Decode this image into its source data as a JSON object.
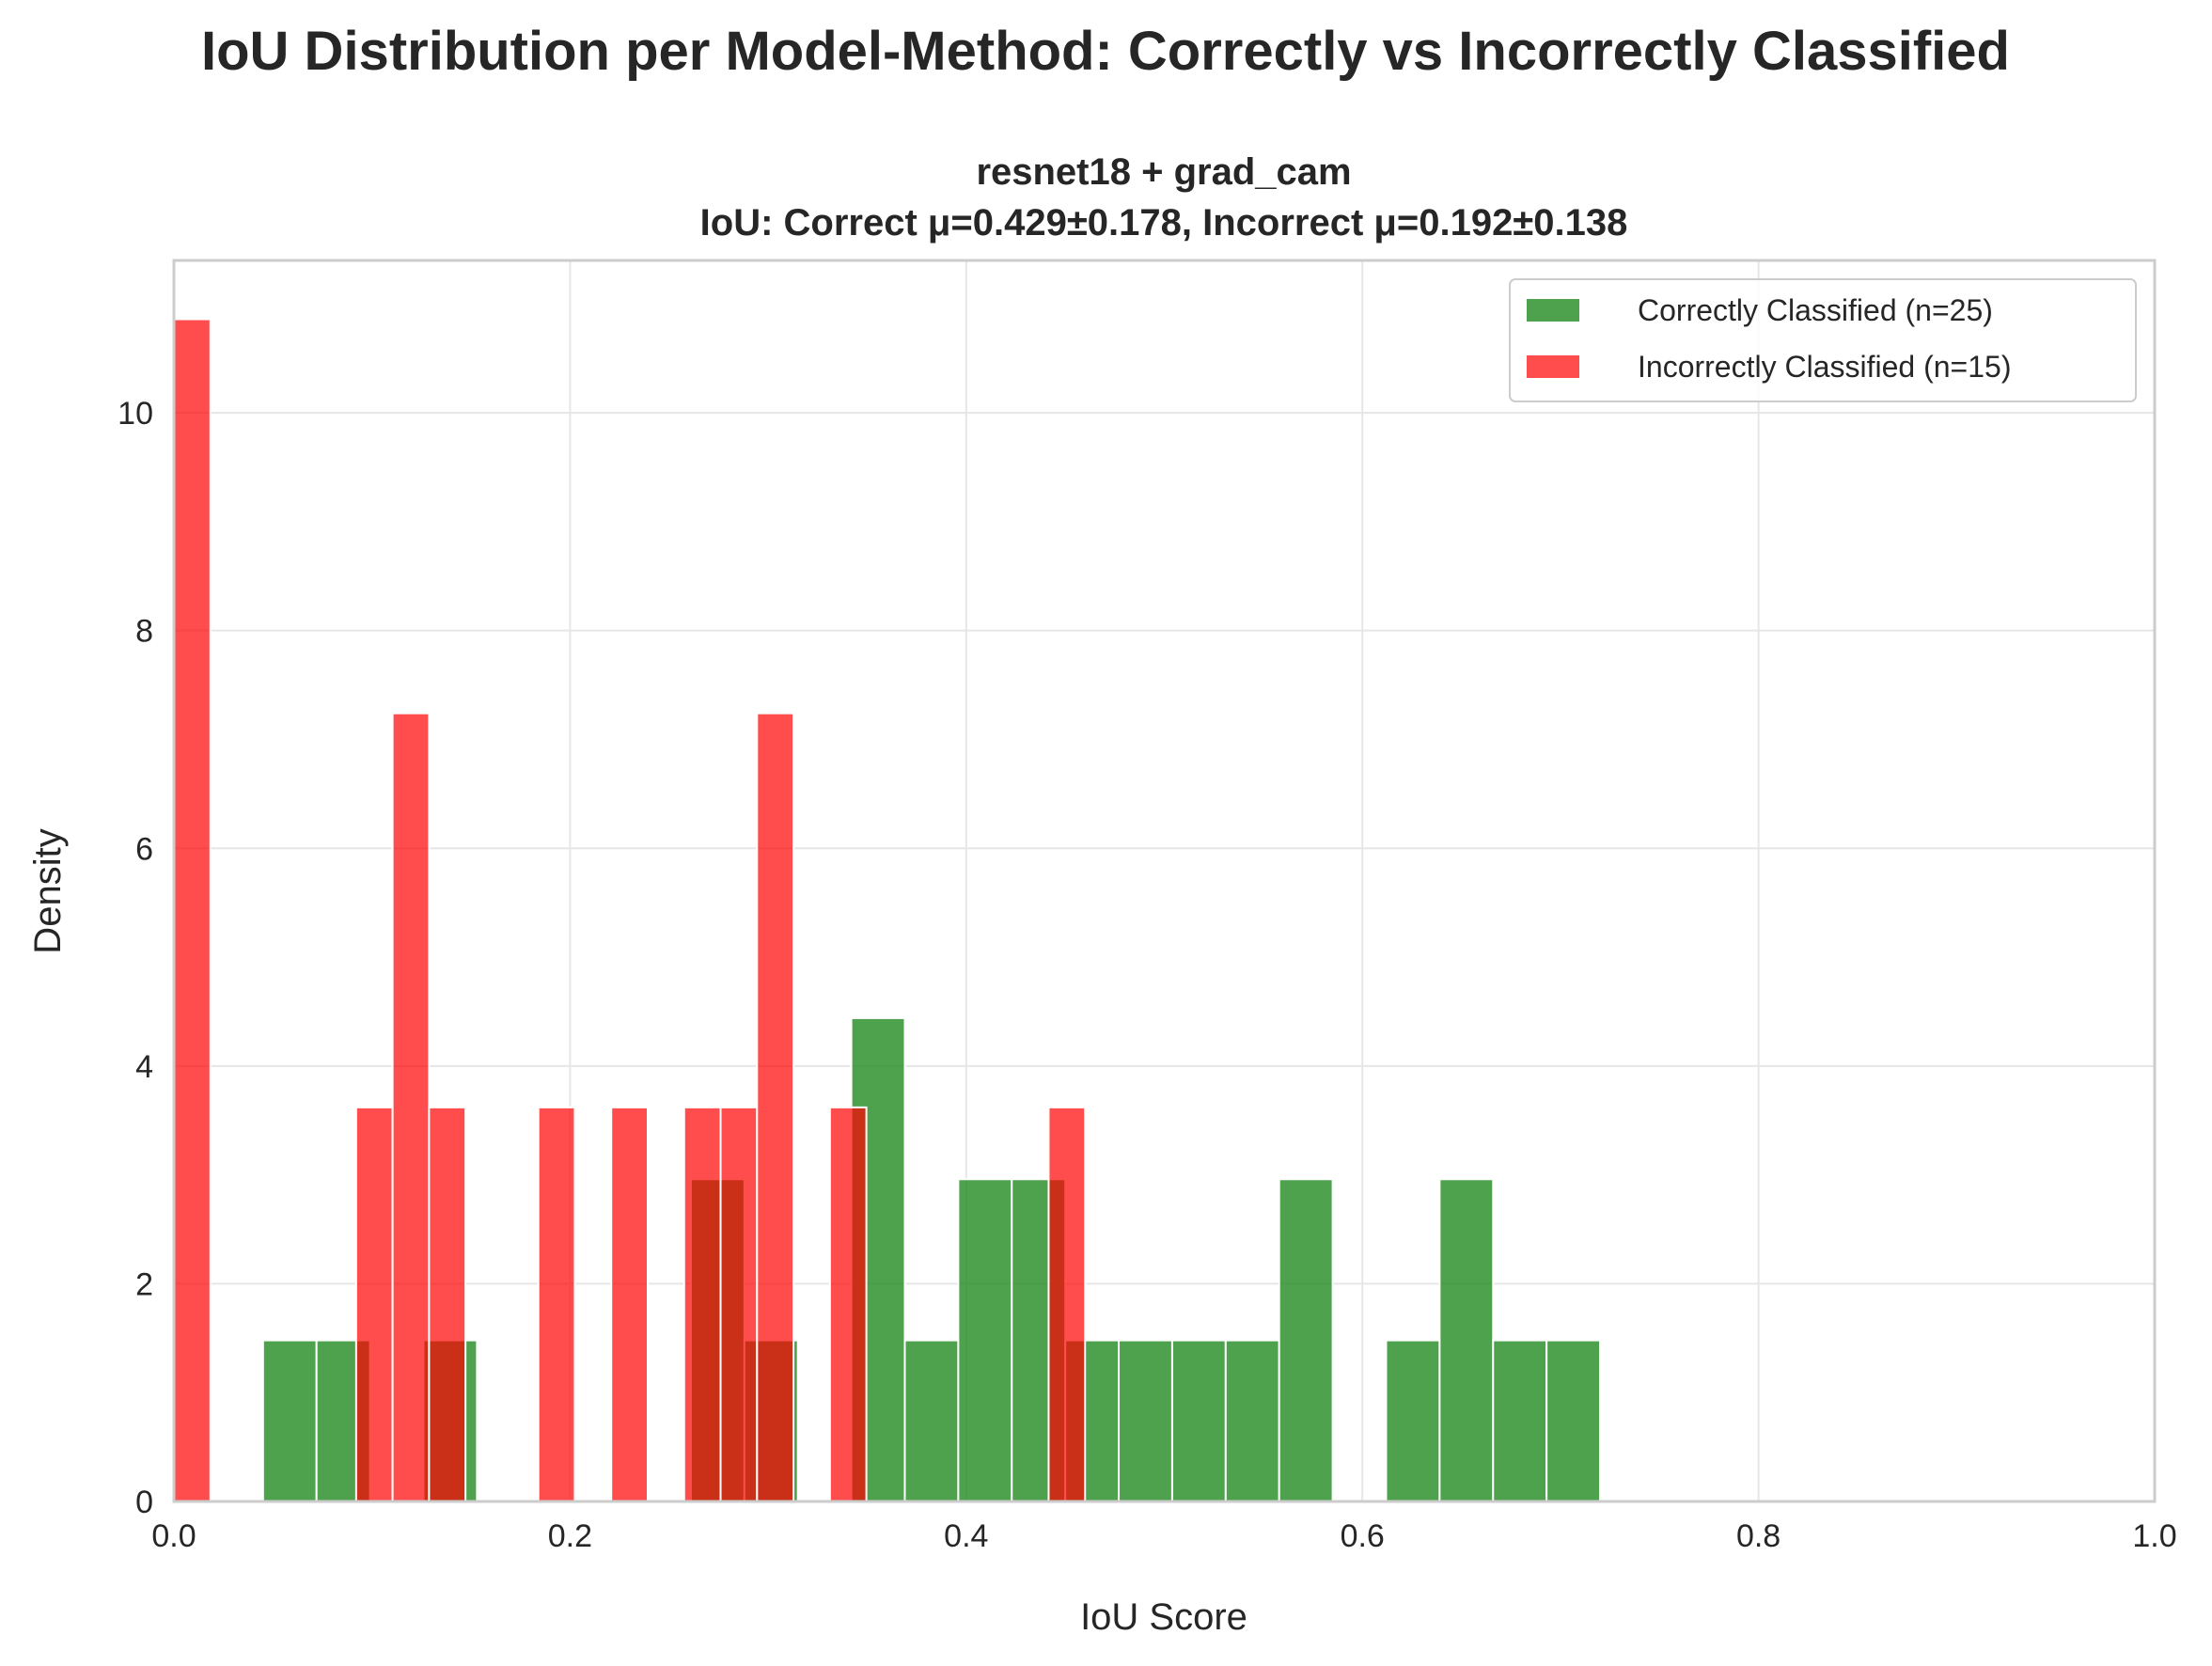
{
  "chart_data": {
    "type": "bar",
    "subtype": "histogram",
    "suptitle": "IoU Distribution per Model-Method: Correctly vs Incorrectly Classified",
    "title_line1": "resnet18 + grad_cam",
    "title_line2": "IoU: Correct μ=0.429±0.178, Incorrect μ=0.192±0.138",
    "xlabel": "IoU Score",
    "ylabel": "Density",
    "xlim": [
      0,
      1.0
    ],
    "ylim": [
      0,
      11.4
    ],
    "xticks": [
      "0.0",
      "0.2",
      "0.4",
      "0.6",
      "0.8",
      "1.0"
    ],
    "yticks": [
      "0",
      "2",
      "4",
      "6",
      "8",
      "10"
    ],
    "grid": true,
    "legend_position": "upper right",
    "series": [
      {
        "name": "Correctly Classified (n=25)",
        "color": "#228b22",
        "bins": [
          {
            "x0": 0.045,
            "x1": 0.072,
            "density": 1.48
          },
          {
            "x0": 0.072,
            "x1": 0.099,
            "density": 1.48
          },
          {
            "x0": 0.126,
            "x1": 0.153,
            "density": 1.48
          },
          {
            "x0": 0.261,
            "x1": 0.288,
            "density": 2.96
          },
          {
            "x0": 0.288,
            "x1": 0.315,
            "density": 1.48
          },
          {
            "x0": 0.342,
            "x1": 0.369,
            "density": 4.44
          },
          {
            "x0": 0.369,
            "x1": 0.396,
            "density": 1.48
          },
          {
            "x0": 0.396,
            "x1": 0.423,
            "density": 2.96
          },
          {
            "x0": 0.423,
            "x1": 0.45,
            "density": 2.96
          },
          {
            "x0": 0.45,
            "x1": 0.477,
            "density": 1.48
          },
          {
            "x0": 0.477,
            "x1": 0.504,
            "density": 1.48
          },
          {
            "x0": 0.504,
            "x1": 0.531,
            "density": 1.48
          },
          {
            "x0": 0.531,
            "x1": 0.558,
            "density": 1.48
          },
          {
            "x0": 0.558,
            "x1": 0.585,
            "density": 2.96
          },
          {
            "x0": 0.612,
            "x1": 0.639,
            "density": 1.48
          },
          {
            "x0": 0.639,
            "x1": 0.666,
            "density": 2.96
          },
          {
            "x0": 0.666,
            "x1": 0.693,
            "density": 1.48
          },
          {
            "x0": 0.693,
            "x1": 0.72,
            "density": 1.48
          }
        ]
      },
      {
        "name": "Incorrectly Classified (n=15)",
        "color": "#ff0000",
        "bins": [
          {
            "x0": 0.0,
            "x1": 0.0184,
            "density": 10.86
          },
          {
            "x0": 0.092,
            "x1": 0.1104,
            "density": 3.62
          },
          {
            "x0": 0.1104,
            "x1": 0.1288,
            "density": 7.24
          },
          {
            "x0": 0.1288,
            "x1": 0.1472,
            "density": 3.62
          },
          {
            "x0": 0.184,
            "x1": 0.2024,
            "density": 3.62
          },
          {
            "x0": 0.2208,
            "x1": 0.2392,
            "density": 3.62
          },
          {
            "x0": 0.2576,
            "x1": 0.276,
            "density": 3.62
          },
          {
            "x0": 0.276,
            "x1": 0.2944,
            "density": 3.62
          },
          {
            "x0": 0.2944,
            "x1": 0.3128,
            "density": 7.24
          },
          {
            "x0": 0.3312,
            "x1": 0.3496,
            "density": 3.62
          },
          {
            "x0": 0.4416,
            "x1": 0.46,
            "density": 3.62
          }
        ]
      }
    ]
  }
}
